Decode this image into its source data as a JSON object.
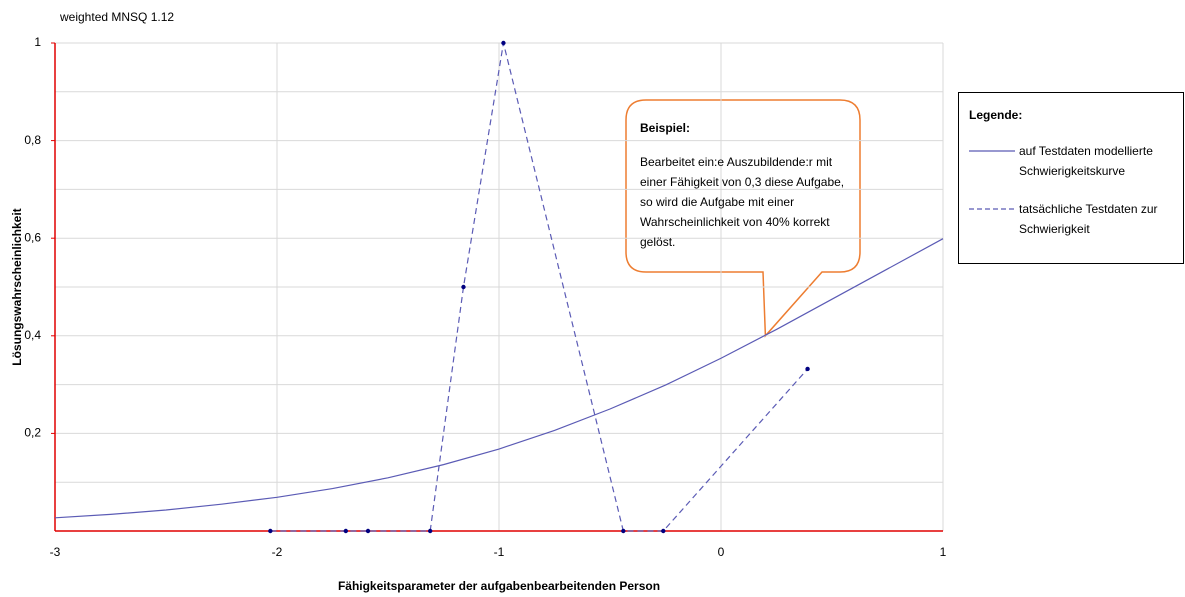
{
  "chart_data": {
    "type": "line",
    "subtitle": "weighted MNSQ  1.12",
    "xlabel": "Fähigkeitsparameter der aufgabenbearbeitenden Person",
    "ylabel": "Lösungswahrscheinlichkeit",
    "xlim": [
      -3,
      1
    ],
    "ylim": [
      0,
      1
    ],
    "xticks": [
      -3,
      -2,
      -1,
      0,
      1
    ],
    "yticks": [
      {
        "value": 0.2,
        "label": "0,2"
      },
      {
        "value": 0.4,
        "label": "0,4"
      },
      {
        "value": 0.6,
        "label": "0,6"
      },
      {
        "value": 0.8,
        "label": "0,8"
      },
      1
    ],
    "y_gridlines": [
      0.1,
      0.2,
      0.3,
      0.4,
      0.5,
      0.6,
      0.7,
      0.8,
      0.9,
      1
    ],
    "grid": true,
    "axis_color": "#e00000",
    "legend": {
      "title": "Legende:",
      "position": "right"
    },
    "series": [
      {
        "name": "auf Testdaten modellierte Schwierigkeitskurve",
        "color": "#5b5bb5",
        "style": "solid",
        "markers": false,
        "x": [
          -3,
          -2.75,
          -2.5,
          -2.25,
          -2,
          -1.75,
          -1.5,
          -1.25,
          -1,
          -0.75,
          -0.5,
          -0.25,
          0,
          0.25,
          0.5,
          0.75,
          1
        ],
        "values": [
          0.027,
          0.034,
          0.043,
          0.055,
          0.069,
          0.087,
          0.109,
          0.136,
          0.168,
          0.206,
          0.25,
          0.299,
          0.354,
          0.413,
          0.475,
          0.537,
          0.599
        ]
      },
      {
        "name": "tatsächliche Testdaten zur Schwierigkeit",
        "color": "#5b5bb5",
        "style": "dashed",
        "markers": true,
        "marker_color": "#000080",
        "x": [
          -2.03,
          -1.69,
          -1.59,
          -1.31,
          -1.16,
          -0.98,
          -0.44,
          -0.26,
          0.39
        ],
        "values": [
          0,
          0,
          0,
          0,
          0.5,
          1,
          0,
          0,
          0.332
        ]
      }
    ],
    "annotation": {
      "title": "Beispiel:",
      "text": "Bearbeitet ein:e Auszubildende:r mit einer Fähigkeit von 0,3 diese Aufgabe, so wird die Aufgabe mit einer Wahrscheinlichkeit von 40% korrekt gelöst.",
      "x": 0.2,
      "y": 0.4,
      "color": "#ed7d31"
    }
  }
}
